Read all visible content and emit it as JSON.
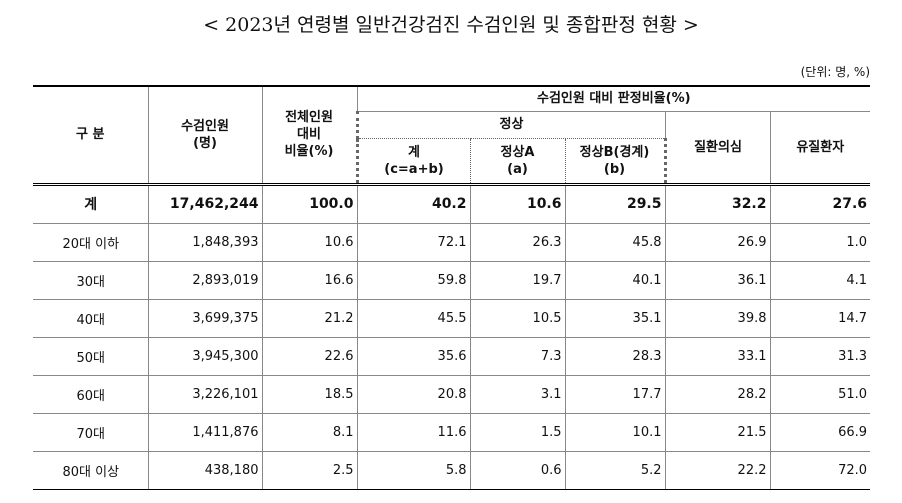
{
  "title": "< 2023년 연령별 일반건강검진 수검인원 및 종합판정 현황 >",
  "unit": "(단위: 명, %)",
  "table": {
    "header": {
      "category": "구 분",
      "examinees": [
        "수검인원",
        "(명)"
      ],
      "total_ratio": [
        "전체인원",
        "대비",
        "비율(%)"
      ],
      "judgment": "수검인원 대비 판정비율(%)",
      "normal": "정상",
      "normal_total": [
        "계",
        "(c=a+b)"
      ],
      "normal_a": [
        "정상A",
        "(a)"
      ],
      "normal_b": [
        "정상B(경계)",
        "(b)"
      ],
      "suspected": "질환의심",
      "diseased": "유질환자"
    },
    "rows": [
      [
        "계",
        "17,462,244",
        "100.0",
        "40.2",
        "10.6",
        "29.5",
        "32.2",
        "27.6"
      ],
      [
        "20대 이하",
        "1,848,393",
        "10.6",
        "72.1",
        "26.3",
        "45.8",
        "26.9",
        "1.0"
      ],
      [
        "30대",
        "2,893,019",
        "16.6",
        "59.8",
        "19.7",
        "40.1",
        "36.1",
        "4.1"
      ],
      [
        "40대",
        "3,699,375",
        "21.2",
        "45.5",
        "10.5",
        "35.1",
        "39.8",
        "14.7"
      ],
      [
        "50대",
        "3,945,300",
        "22.6",
        "35.6",
        "7.3",
        "28.3",
        "33.1",
        "31.3"
      ],
      [
        "60대",
        "3,226,101",
        "18.5",
        "20.8",
        "3.1",
        "17.7",
        "28.2",
        "51.0"
      ],
      [
        "70대",
        "1,411,876",
        "8.1",
        "11.6",
        "1.5",
        "10.1",
        "21.5",
        "66.9"
      ],
      [
        "80대 이상",
        "438,180",
        "2.5",
        "5.8",
        "0.6",
        "5.2",
        "22.2",
        "72.0"
      ]
    ]
  }
}
